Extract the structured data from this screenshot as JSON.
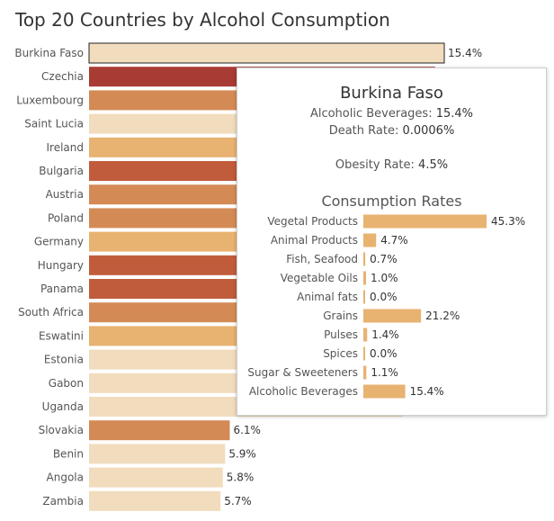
{
  "chart_data": {
    "type": "bar",
    "orientation": "horizontal",
    "title": "Top 20 Countries by Alcohol Consumption",
    "categories": [
      "Burkina Faso",
      "Czechia",
      "Luxembourg",
      "Saint Lucia",
      "Ireland",
      "Bulgaria",
      "Austria",
      "Poland",
      "Germany",
      "Hungary",
      "Panama",
      "South Africa",
      "Eswatini",
      "Estonia",
      "Gabon",
      "Uganda",
      "Slovakia",
      "Benin",
      "Angola",
      "Zambia"
    ],
    "values": [
      15.4,
      15.0,
      14.9,
      14.8,
      14.7,
      14.6,
      14.5,
      14.4,
      14.3,
      14.2,
      14.1,
      14.0,
      13.9,
      13.8,
      13.7,
      13.6,
      6.1,
      5.9,
      5.8,
      5.7
    ],
    "value_labels": [
      "15.4%",
      "",
      "",
      "",
      "",
      "",
      "",
      "",
      "",
      "",
      "",
      "",
      "",
      "",
      "",
      "",
      "6.1%",
      "5.9%",
      "5.8%",
      "5.7%"
    ],
    "colors": [
      "#f1dcbd",
      "#a93b35",
      "#d48a55",
      "#f1dcbd",
      "#e8b271",
      "#c05c3c",
      "#d48a55",
      "#d48a55",
      "#e8b271",
      "#c05c3c",
      "#c05c3c",
      "#d48a55",
      "#e8b271",
      "#f1dcbd",
      "#f1dcbd",
      "#f1dcbd",
      "#d48a55",
      "#f1dcbd",
      "#f1dcbd",
      "#f1dcbd"
    ],
    "highlighted": "Burkina Faso"
  },
  "tooltip": {
    "country": "Burkina Faso",
    "alcohol_label": "Alcoholic Beverages: ",
    "alcohol_value": "15.4%",
    "death_label": "Death Rate: ",
    "death_value": "0.0006%",
    "obesity_label": "Obesity Rate: ",
    "obesity_value": "4.5%",
    "section_title": "Consumption Rates",
    "bar_color": "#e8b271",
    "rates": {
      "categories": [
        "Vegetal Products",
        "Animal Products",
        "Fish, Seafood",
        "Vegetable Oils",
        "Animal fats",
        "Grains",
        "Pulses",
        "Spices",
        "Sugar & Sweeteners",
        "Alcoholic Beverages"
      ],
      "values": [
        45.3,
        4.7,
        0.7,
        1.0,
        0.0,
        21.2,
        1.4,
        0.0,
        1.1,
        15.4
      ],
      "value_labels": [
        "45.3%",
        "4.7%",
        "0.7%",
        "1.0%",
        "0.0%",
        "21.2%",
        "1.4%",
        "0.0%",
        "1.1%",
        "15.4%"
      ]
    }
  }
}
